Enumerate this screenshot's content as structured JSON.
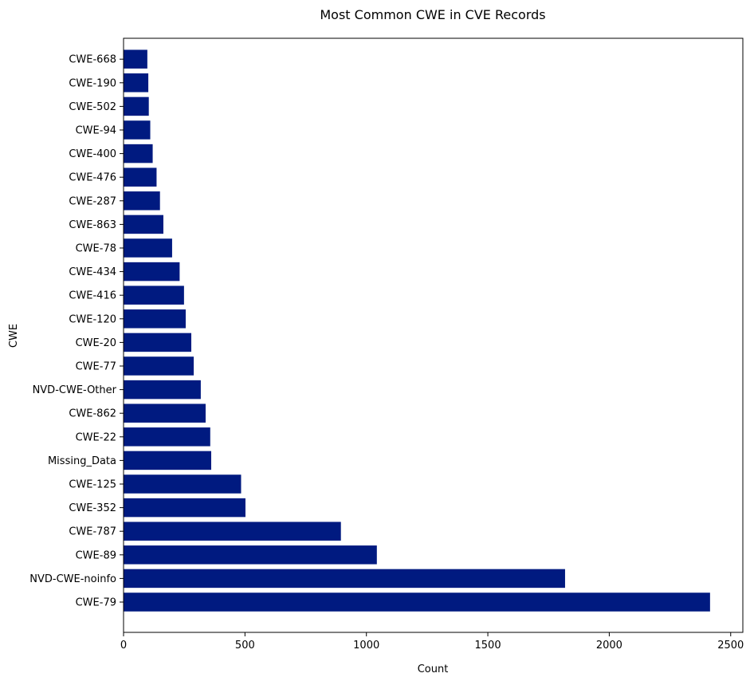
{
  "chart_data": {
    "type": "bar",
    "orientation": "horizontal",
    "title": "Most Common CWE in CVE Records",
    "xlabel": "Count",
    "ylabel": "CWE",
    "xlim": [
      0,
      2550
    ],
    "x_ticks": [
      0,
      500,
      1000,
      1500,
      2000,
      2500
    ],
    "grid": false,
    "bar_color": "#001a80",
    "categories": [
      "CWE-79",
      "NVD-CWE-noinfo",
      "CWE-89",
      "CWE-787",
      "CWE-352",
      "CWE-125",
      "Missing_Data",
      "CWE-22",
      "CWE-862",
      "NVD-CWE-Other",
      "CWE-77",
      "CWE-20",
      "CWE-120",
      "CWE-416",
      "CWE-434",
      "CWE-78",
      "CWE-863",
      "CWE-287",
      "CWE-476",
      "CWE-400",
      "CWE-94",
      "CWE-502",
      "CWE-190",
      "CWE-668"
    ],
    "values": [
      2415,
      1818,
      1043,
      895,
      502,
      484,
      361,
      357,
      338,
      318,
      289,
      279,
      256,
      249,
      231,
      200,
      164,
      150,
      136,
      120,
      110,
      104,
      102,
      98
    ]
  }
}
